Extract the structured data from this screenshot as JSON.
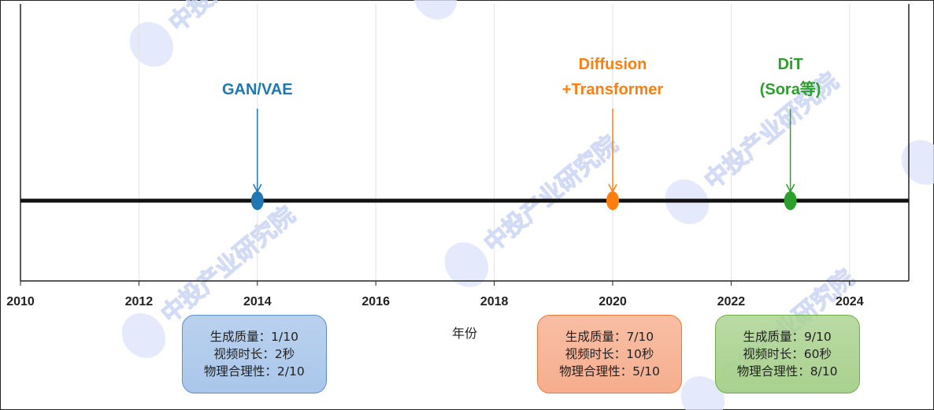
{
  "chart_data": {
    "type": "timeline",
    "xlabel": "年份",
    "xlim": [
      2010,
      2025
    ],
    "xticks": [
      2010,
      2012,
      2014,
      2016,
      2018,
      2020,
      2022,
      2024
    ],
    "grid": true,
    "events": [
      {
        "year": 2014,
        "label_lines": [
          "GAN/VAE"
        ],
        "color": "#1f77b4",
        "box": {
          "lines": [
            "生成质量：1/10",
            "视频时长：2秒",
            "物理合理性：2/10"
          ],
          "fill": "#a9c6ea",
          "border": "#5b8fd0"
        }
      },
      {
        "year": 2020,
        "label_lines": [
          "Diffusion",
          "+Transformer"
        ],
        "color": "#ff7f0e",
        "box": {
          "lines": [
            "生成质量：7/10",
            "视频时长：10秒",
            "物理合理性：5/10"
          ],
          "fill": "#f6ae8e",
          "border": "#f07a3a"
        }
      },
      {
        "year": 2023,
        "label_lines": [
          "DiT",
          "(Sora等)"
        ],
        "color": "#2ca02c",
        "box": {
          "lines": [
            "生成质量：9/10",
            "视频时长：60秒",
            "物理合理性：8/10"
          ],
          "fill": "#a9d18e",
          "border": "#70ad47"
        }
      }
    ]
  },
  "watermark": "中投产业研究院"
}
